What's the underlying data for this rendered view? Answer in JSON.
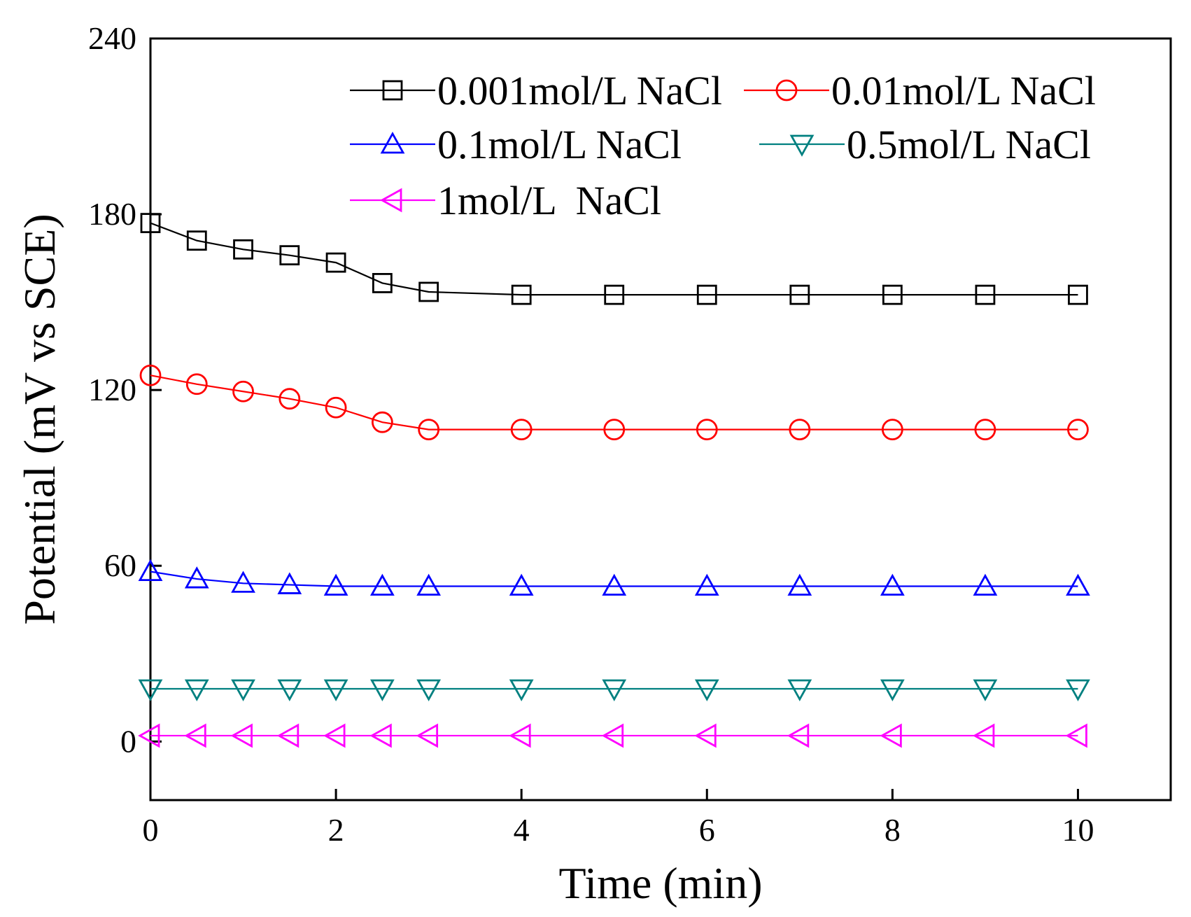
{
  "chart_data": {
    "type": "line",
    "title": "",
    "xlabel": "Time (min)",
    "ylabel": "Potential (mV vs SCE)",
    "xlim": [
      0,
      11
    ],
    "ylim": [
      -20,
      240
    ],
    "xticks": [
      0,
      2,
      4,
      6,
      8,
      10
    ],
    "yticks": [
      0,
      60,
      120,
      180,
      240
    ],
    "x": [
      0,
      0.5,
      1,
      1.5,
      2,
      2.5,
      3,
      4,
      5,
      6,
      7,
      8,
      9,
      10
    ],
    "series": [
      {
        "name": "0.001mol/L NaCl",
        "color": "#000000",
        "marker": "square",
        "values": [
          177,
          171,
          168,
          166,
          163.5,
          156.5,
          153.5,
          152.5,
          152.5,
          152.5,
          152.5,
          152.5,
          152.5,
          152.5
        ]
      },
      {
        "name": "0.01mol/L NaCl",
        "color": "#ff0000",
        "marker": "circle",
        "values": [
          125,
          122,
          119.5,
          117,
          114,
          109,
          106.5,
          106.5,
          106.5,
          106.5,
          106.5,
          106.5,
          106.5,
          106.5
        ]
      },
      {
        "name": "0.1mol/L NaCl",
        "color": "#0000ff",
        "marker": "triangle-up",
        "values": [
          58,
          55.5,
          54,
          53.5,
          53,
          53,
          53,
          53,
          53,
          53,
          53,
          53,
          53,
          53
        ]
      },
      {
        "name": "0.5mol/L NaCl",
        "color": "#008080",
        "marker": "triangle-down",
        "values": [
          18,
          18,
          18,
          18,
          18,
          18,
          18,
          18,
          18,
          18,
          18,
          18,
          18,
          18
        ]
      },
      {
        "name": "1mol/L  NaCl",
        "color": "#ff00ff",
        "marker": "triangle-left",
        "values": [
          2,
          2,
          2,
          2,
          2,
          2,
          2,
          2,
          2,
          2,
          2,
          2,
          2,
          2
        ]
      }
    ],
    "legend": "top-right",
    "grid": false
  }
}
